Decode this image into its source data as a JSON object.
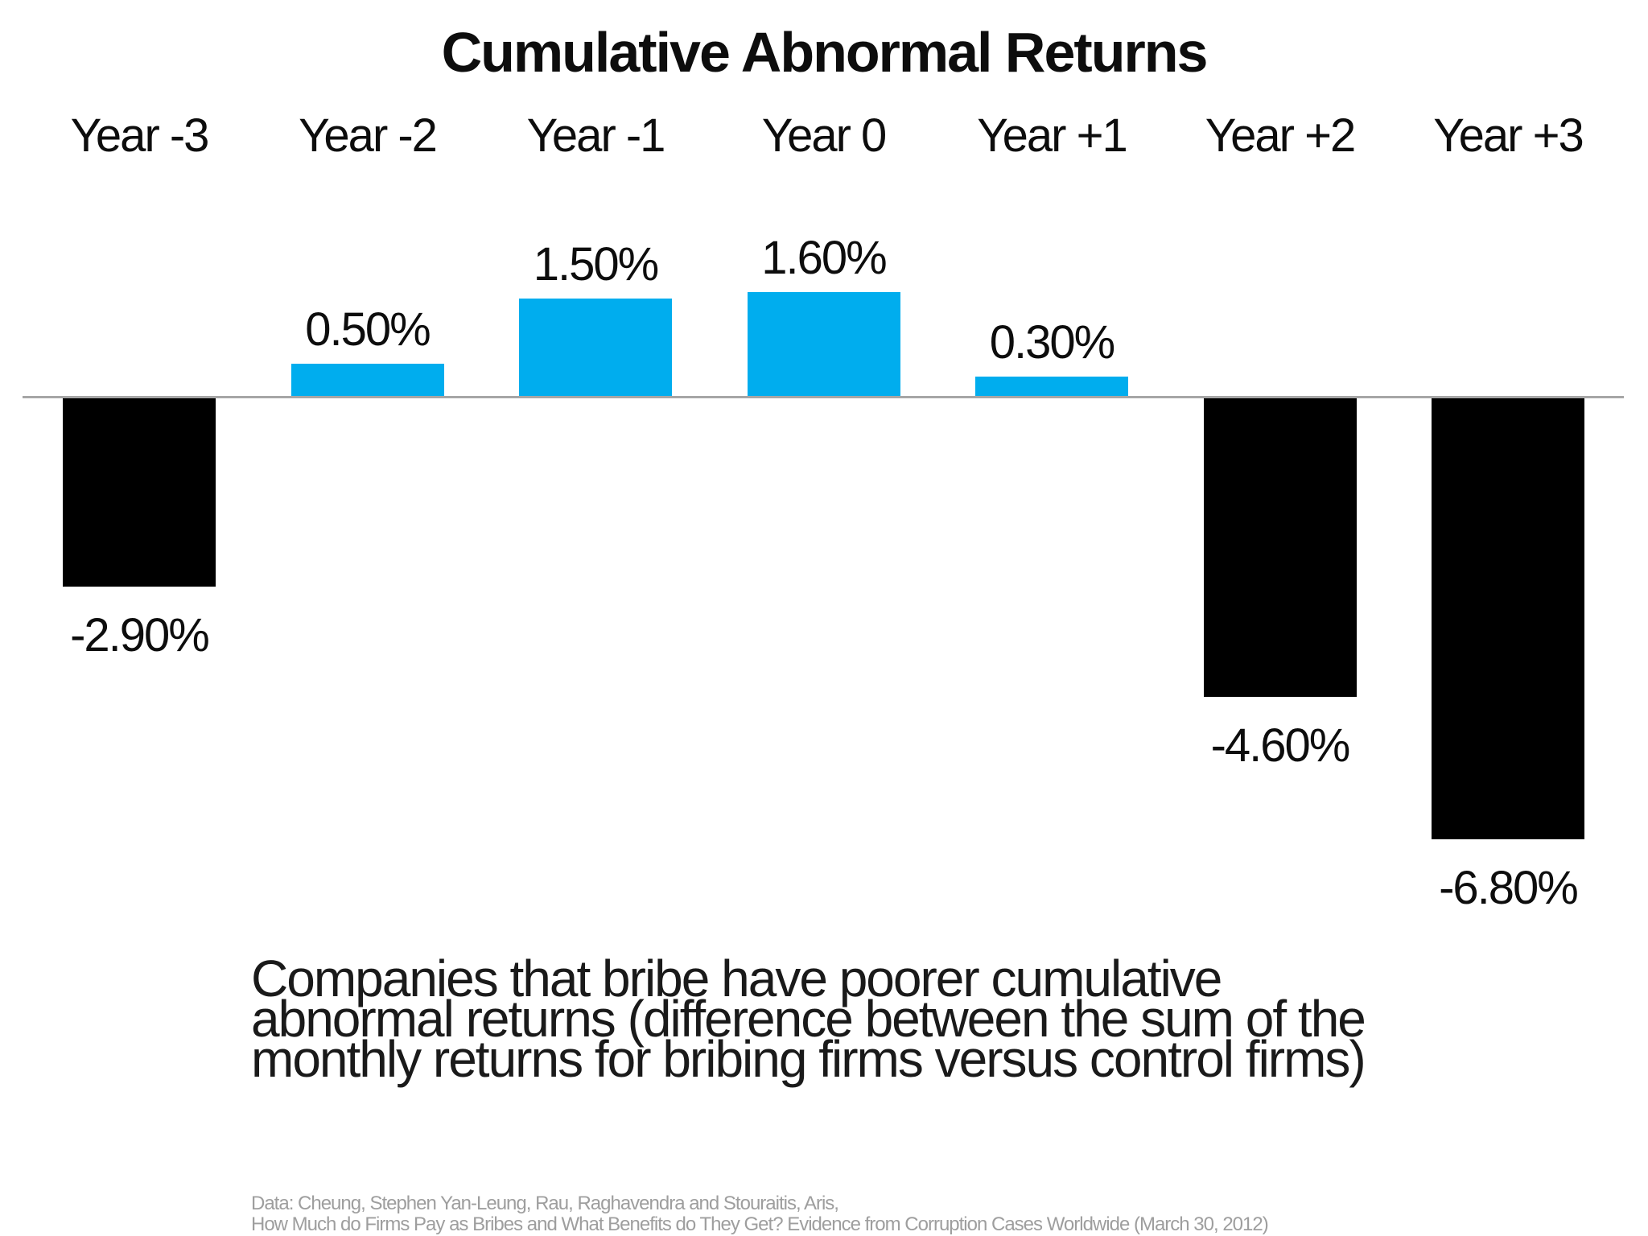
{
  "title": "Cumulative Abnormal Returns",
  "chart_data": {
    "type": "bar",
    "title": "Cumulative Abnormal Returns",
    "categories": [
      "Year -3",
      "Year -2",
      "Year -1",
      "Year 0",
      "Year +1",
      "Year +2",
      "Year +3"
    ],
    "values": [
      -2.9,
      0.5,
      1.5,
      1.6,
      0.3,
      -4.6,
      -6.8
    ],
    "value_labels": [
      "-2.90%",
      "0.50%",
      "1.50%",
      "1.60%",
      "0.30%",
      "-4.60%",
      "-6.80%"
    ],
    "ylim": [
      -6.8,
      1.6
    ],
    "grid": false,
    "legend": "none",
    "positive_color": "#00ADEE",
    "negative_color": "#000000",
    "axis_color": "#A6A6A6",
    "unit": "%"
  },
  "caption": {
    "lines": [
      "Companies that bribe have poorer cumulative",
      "abnormal returns (difference between the sum of the",
      "monthly returns for bribing firms versus control firms)"
    ]
  },
  "source": {
    "lines": [
      "Data: Cheung, Stephen Yan-Leung, Rau, Raghavendra and Stouraitis, Aris,",
      "How Much do Firms Pay as Bribes and What Benefits do They Get? Evidence from Corruption Cases Worldwide (March 30, 2012)"
    ]
  }
}
